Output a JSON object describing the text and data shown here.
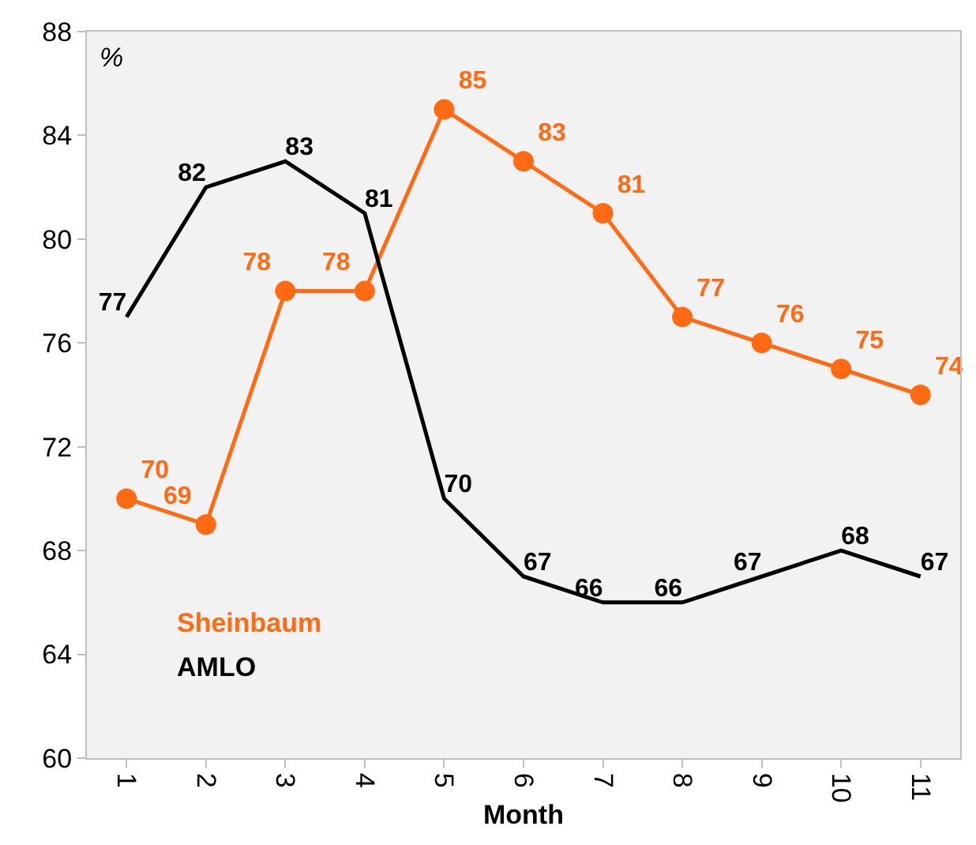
{
  "chart_data": {
    "type": "line",
    "categories": [
      "1",
      "2",
      "3",
      "4",
      "5",
      "6",
      "7",
      "8",
      "9",
      "10",
      "11"
    ],
    "series": [
      {
        "name": "Sheinbaum",
        "color": "#ff6a13",
        "marker": "circle",
        "values": [
          70,
          69,
          78,
          78,
          85,
          83,
          81,
          77,
          76,
          75,
          74
        ]
      },
      {
        "name": "AMLO",
        "color": "#000000",
        "marker": "none",
        "values": [
          77,
          82,
          83,
          81,
          70,
          67,
          66,
          66,
          67,
          68,
          67
        ]
      }
    ],
    "xlabel": "Month",
    "annotations": [
      "%"
    ],
    "ylim": [
      60,
      88
    ],
    "yticks": [
      60,
      64,
      68,
      72,
      76,
      80,
      84,
      88
    ],
    "data_labels": true,
    "grid": false
  }
}
